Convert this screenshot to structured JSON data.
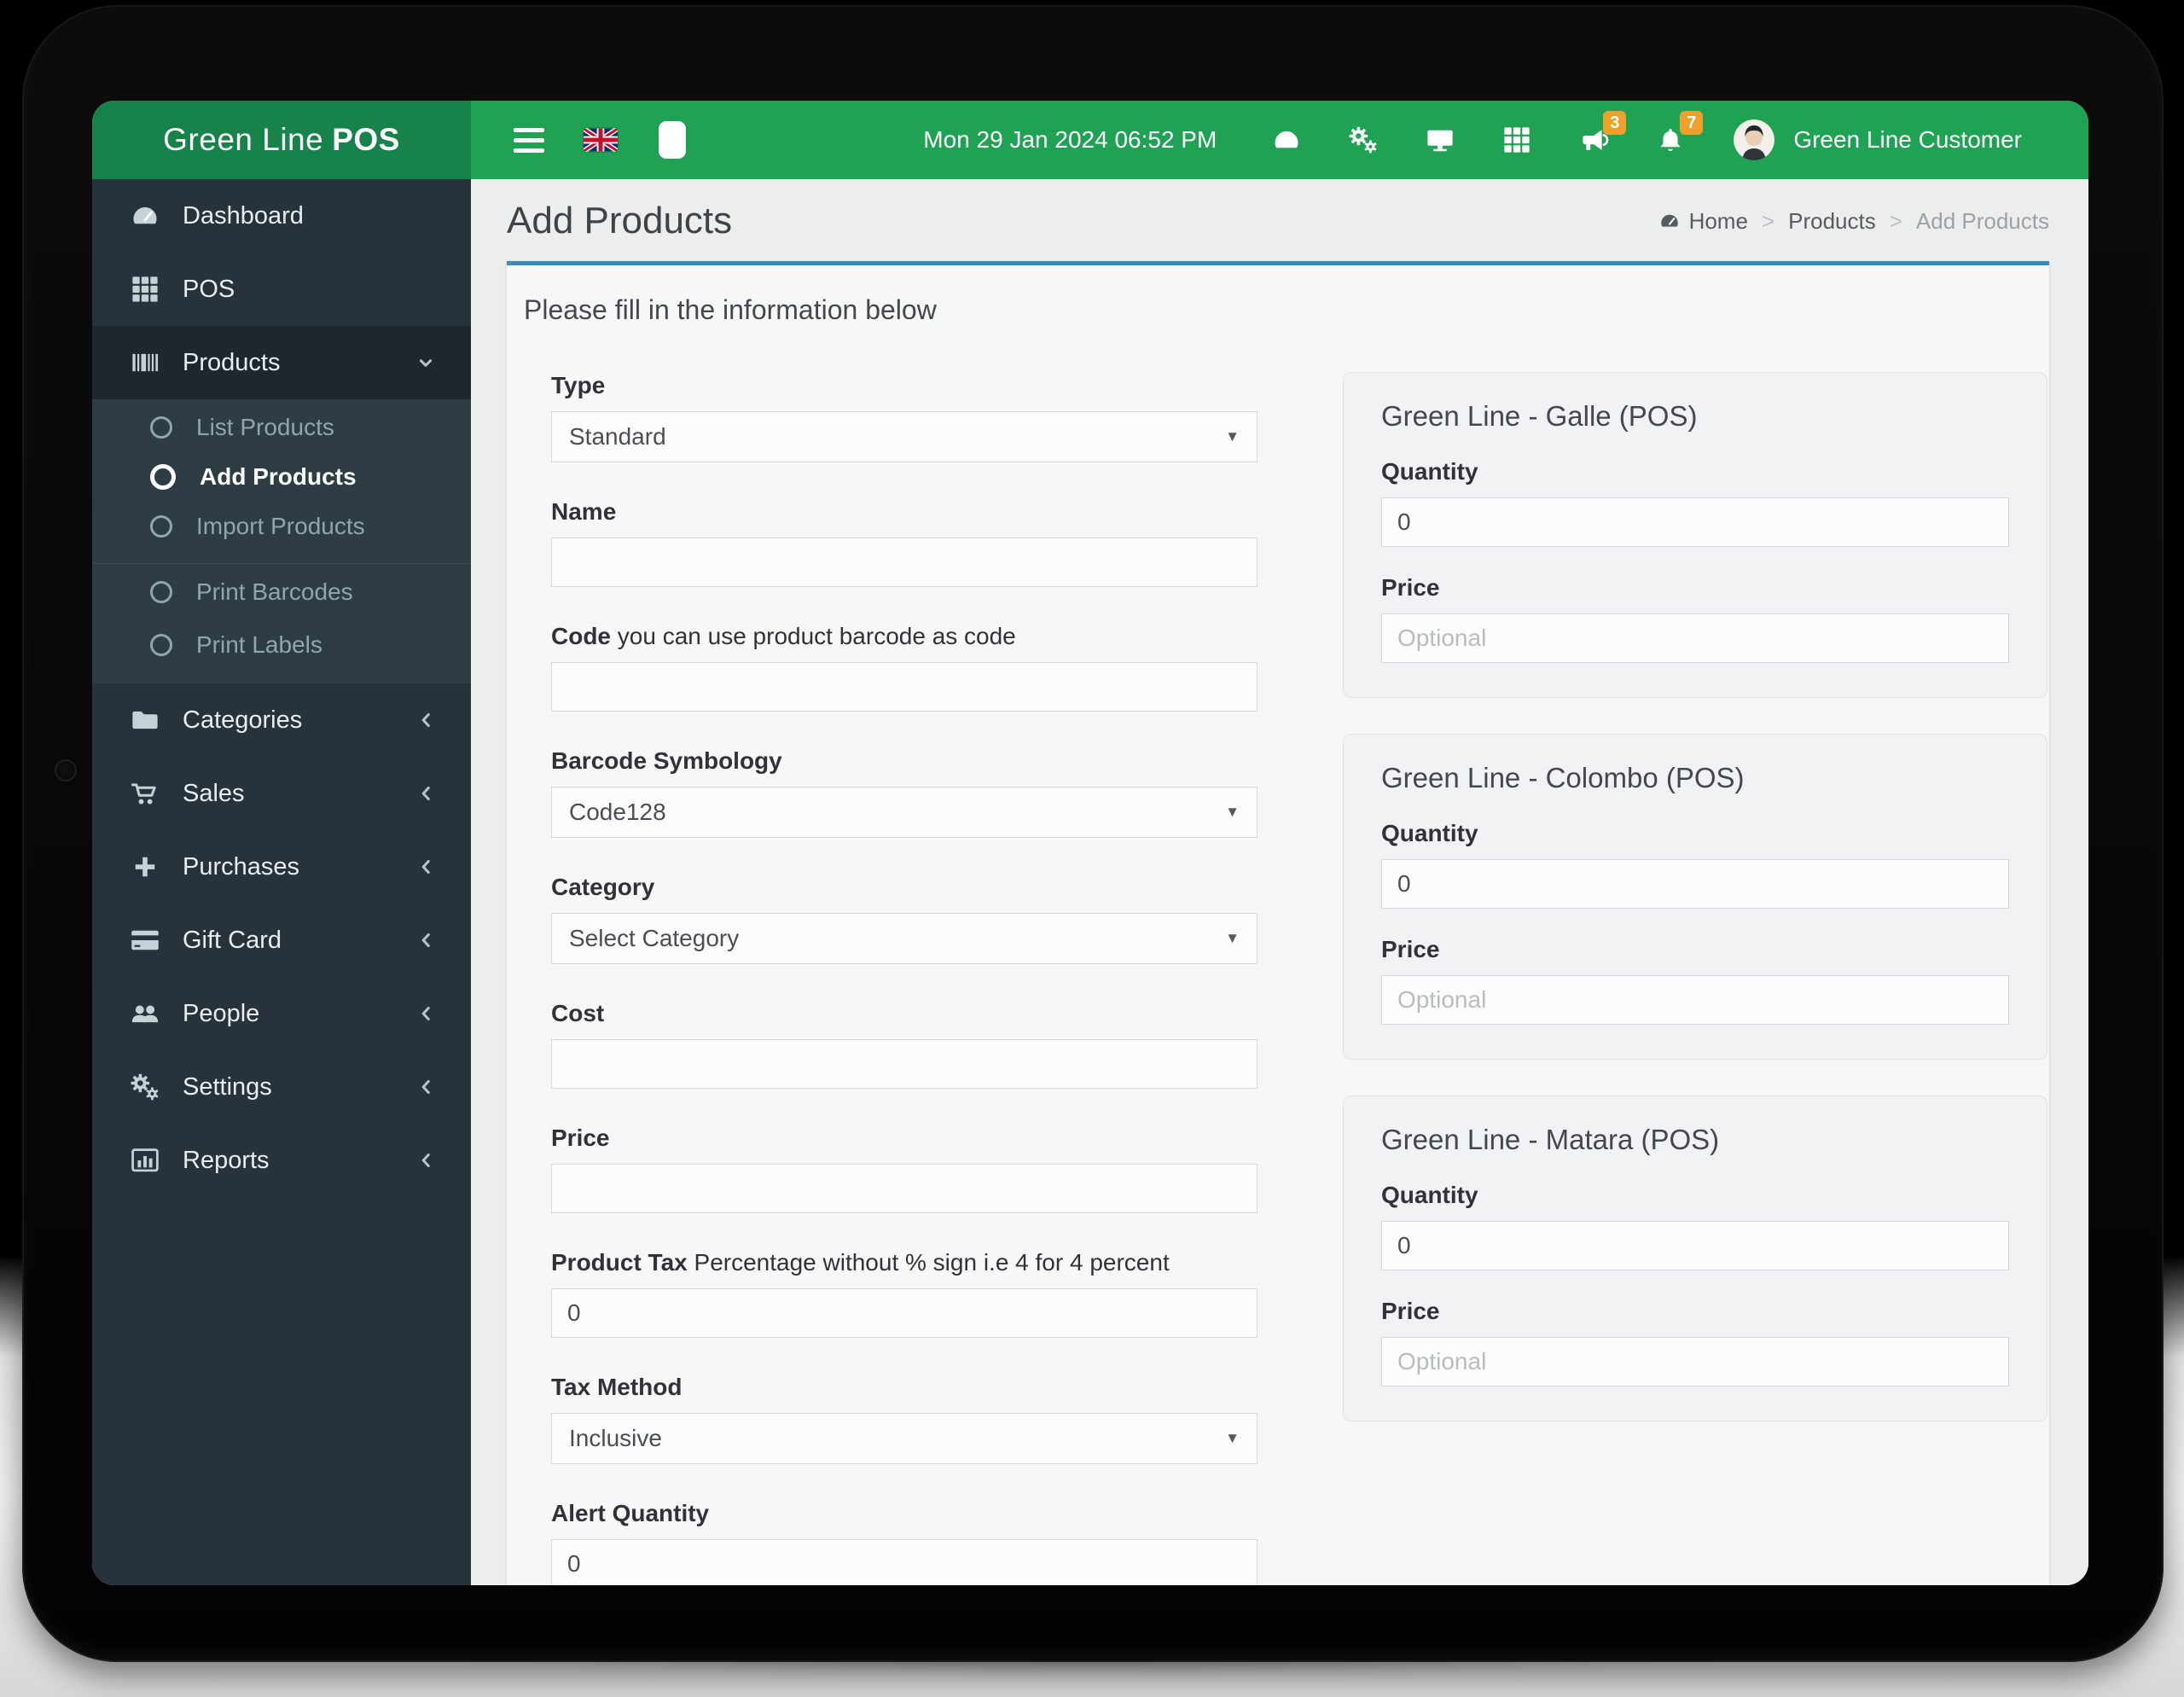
{
  "app": {
    "brand_prefix": "Green Line",
    "brand_suffix": "POS"
  },
  "header": {
    "datetime": "Mon 29 Jan 2024 06:52 PM",
    "user_name": "Green Line Customer",
    "icons": [
      {
        "name": "tachometer-icon"
      },
      {
        "name": "gears-icon"
      },
      {
        "name": "monitor-icon"
      },
      {
        "name": "grid-icon"
      },
      {
        "name": "bullhorn-icon",
        "badge": "3"
      },
      {
        "name": "bell-icon",
        "badge": "7"
      }
    ]
  },
  "sidebar": {
    "items": [
      {
        "label": "Dashboard",
        "icon": "tachometer-icon"
      },
      {
        "label": "POS",
        "icon": "grid-icon"
      },
      {
        "label": "Products",
        "icon": "barcode-icon",
        "expanded": true,
        "children": [
          {
            "label": "List Products"
          },
          {
            "label": "Add Products",
            "active": true
          },
          {
            "label": "Import Products"
          },
          {
            "label": "Print Barcodes",
            "divider_before": true
          },
          {
            "label": "Print Labels"
          }
        ]
      },
      {
        "label": "Categories",
        "icon": "folder-icon",
        "collapsible": true
      },
      {
        "label": "Sales",
        "icon": "cart-icon",
        "collapsible": true
      },
      {
        "label": "Purchases",
        "icon": "plus-icon",
        "collapsible": true
      },
      {
        "label": "Gift Card",
        "icon": "credit-card-icon",
        "collapsible": true
      },
      {
        "label": "People",
        "icon": "users-icon",
        "collapsible": true
      },
      {
        "label": "Settings",
        "icon": "gears-icon",
        "collapsible": true
      },
      {
        "label": "Reports",
        "icon": "bar-chart-icon",
        "collapsible": true
      }
    ]
  },
  "page": {
    "title": "Add Products",
    "breadcrumb": [
      {
        "label": "Home",
        "icon": "tachometer-icon"
      },
      {
        "label": "Products"
      },
      {
        "label": "Add Products",
        "current": true
      }
    ],
    "panel_heading": "Please fill in the information below"
  },
  "form": {
    "fields": [
      {
        "label": "Type",
        "control": "select",
        "value": "Standard"
      },
      {
        "label": "Name",
        "control": "input",
        "value": ""
      },
      {
        "label": "Code",
        "hint": "you can use product barcode as code",
        "control": "input",
        "value": ""
      },
      {
        "label": "Barcode Symbology",
        "control": "select",
        "value": "Code128"
      },
      {
        "label": "Category",
        "control": "select",
        "value": "Select Category"
      },
      {
        "label": "Cost",
        "control": "input",
        "value": ""
      },
      {
        "label": "Price",
        "control": "input",
        "value": ""
      },
      {
        "label": "Product Tax",
        "hint": "Percentage without % sign i.e 4 for 4 percent",
        "control": "input",
        "value": "0"
      },
      {
        "label": "Tax Method",
        "control": "select",
        "value": "Inclusive"
      },
      {
        "label": "Alert Quantity",
        "control": "input",
        "value": "0"
      }
    ]
  },
  "warehouses": [
    {
      "title": "Green Line - Galle (POS)",
      "quantity_label": "Quantity",
      "quantity_value": "0",
      "price_label": "Price",
      "price_placeholder": "Optional"
    },
    {
      "title": "Green Line - Colombo (POS)",
      "quantity_label": "Quantity",
      "quantity_value": "0",
      "price_label": "Price",
      "price_placeholder": "Optional"
    },
    {
      "title": "Green Line - Matara (POS)",
      "quantity_label": "Quantity",
      "quantity_value": "0",
      "price_label": "Price",
      "price_placeholder": "Optional"
    }
  ],
  "colors": {
    "header_green": "#1fa254",
    "logo_green": "#17834a",
    "sidebar_dark": "#27323a",
    "submenu_dark": "#2e3c44",
    "accent_blue": "#3a8cbb",
    "badge_orange": "#efa02a"
  }
}
